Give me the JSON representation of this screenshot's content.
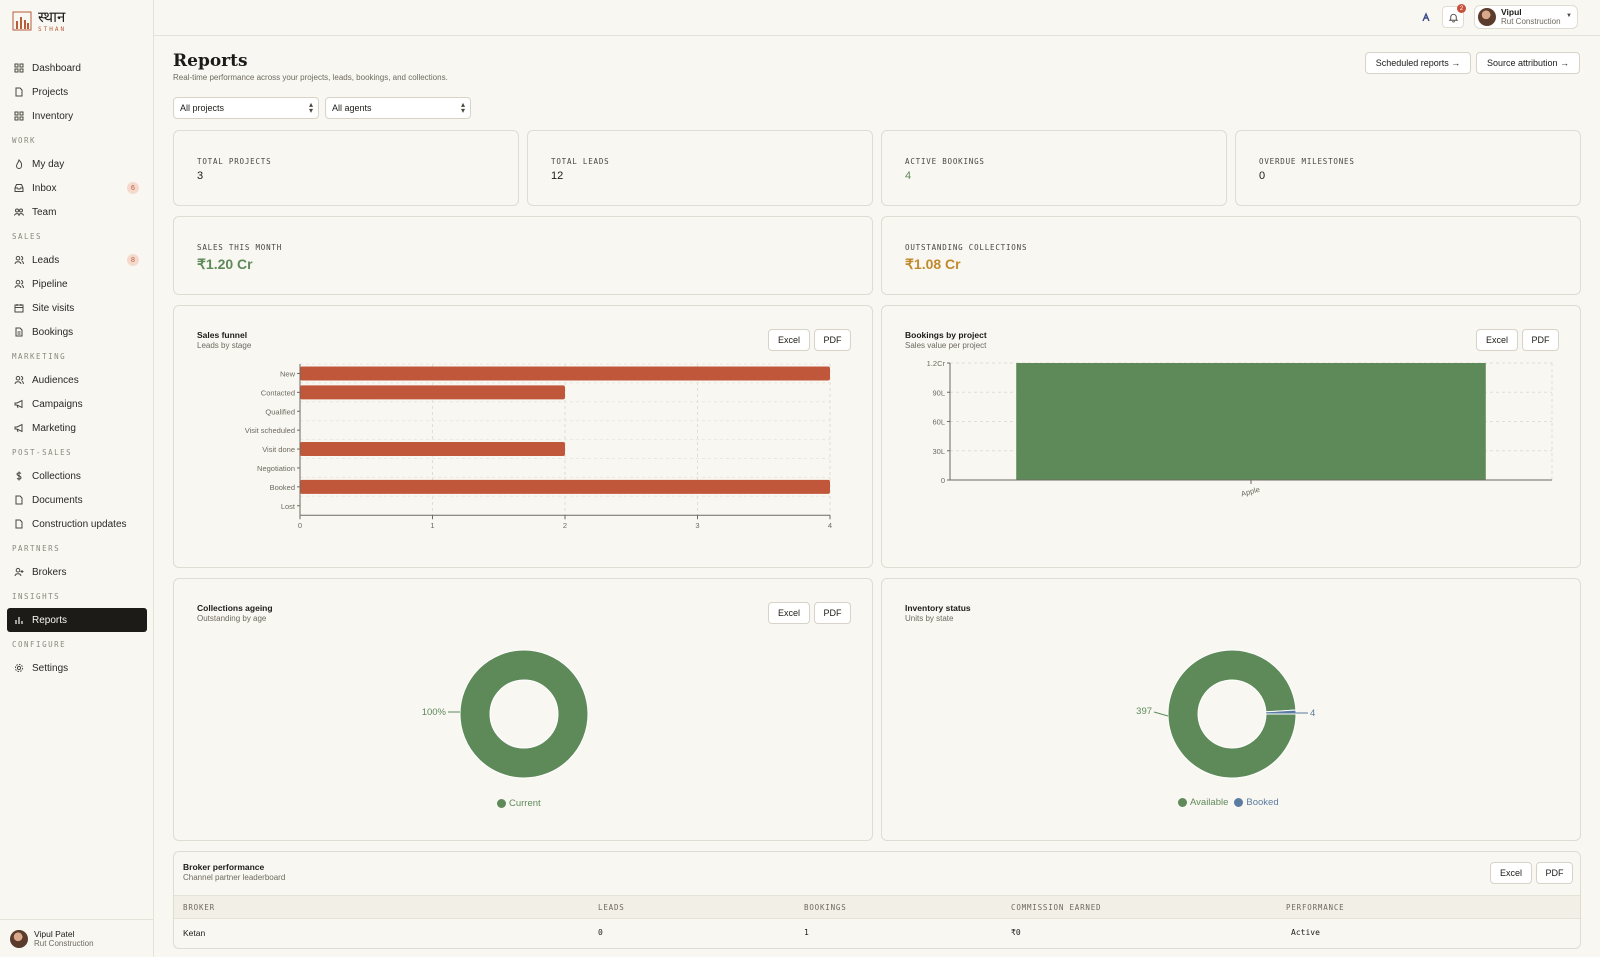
{
  "brand": {
    "name": "स्थान",
    "sub": "STHAN",
    "logo_icon": "bar-chart-logo-icon"
  },
  "sidebar": {
    "top": [
      {
        "label": "Dashboard",
        "icon": "grid-icon"
      },
      {
        "label": "Projects",
        "icon": "file-icon"
      },
      {
        "label": "Inventory",
        "icon": "grid-icon"
      }
    ],
    "sections": [
      {
        "title": "WORK",
        "items": [
          {
            "label": "My day",
            "icon": "flame-icon"
          },
          {
            "label": "Inbox",
            "icon": "inbox-icon",
            "badge": "6"
          },
          {
            "label": "Team",
            "icon": "team-icon"
          }
        ]
      },
      {
        "title": "SALES",
        "items": [
          {
            "label": "Leads",
            "icon": "users-icon",
            "badge": "8"
          },
          {
            "label": "Pipeline",
            "icon": "users-icon"
          },
          {
            "label": "Site visits",
            "icon": "calendar-icon"
          },
          {
            "label": "Bookings",
            "icon": "document-icon"
          }
        ]
      },
      {
        "title": "MARKETING",
        "items": [
          {
            "label": "Audiences",
            "icon": "users-icon"
          },
          {
            "label": "Campaigns",
            "icon": "megaphone-icon"
          },
          {
            "label": "Marketing",
            "icon": "megaphone-icon"
          }
        ]
      },
      {
        "title": "POST-SALES",
        "items": [
          {
            "label": "Collections",
            "icon": "dollar-icon"
          },
          {
            "label": "Documents",
            "icon": "file-icon"
          },
          {
            "label": "Construction updates",
            "icon": "file-icon"
          }
        ]
      },
      {
        "title": "PARTNERS",
        "items": [
          {
            "label": "Brokers",
            "icon": "user-plus-icon"
          }
        ]
      },
      {
        "title": "INSIGHTS",
        "items": [
          {
            "label": "Reports",
            "icon": "bar-chart-icon",
            "active": true
          }
        ]
      },
      {
        "title": "CONFIGURE",
        "items": [
          {
            "label": "Settings",
            "icon": "gear-icon"
          }
        ]
      }
    ],
    "user": {
      "name": "Vipul Patel",
      "org": "Rut Construction"
    }
  },
  "topbar": {
    "notification_count": "2",
    "user_name": "Vipul",
    "user_org": "Rut Construction"
  },
  "page": {
    "title": "Reports",
    "subtitle": "Real-time performance across your projects, leads, bookings, and collections.",
    "scheduled_reports": "Scheduled reports →",
    "source_attribution": "Source attribution →",
    "filter_projects": "All projects",
    "filter_agents": "All agents"
  },
  "kpis": {
    "total_projects": {
      "label": "TOTAL PROJECTS",
      "value": "3"
    },
    "total_leads": {
      "label": "TOTAL LEADS",
      "value": "12"
    },
    "active_bookings": {
      "label": "ACTIVE BOOKINGS",
      "value": "4"
    },
    "overdue_milestones": {
      "label": "OVERDUE MILESTONES",
      "value": "0"
    },
    "sales_this_month": {
      "label": "SALES THIS MONTH",
      "value": "₹1.20 Cr"
    },
    "outstanding_collections": {
      "label": "OUTSTANDING COLLECTIONS",
      "value": "₹1.08 Cr"
    }
  },
  "colors": {
    "terracotta": "#c0573a",
    "green": "#5e8a5a",
    "blue": "#5b7ba0",
    "gold": "#c08a2e"
  },
  "buttons": {
    "excel": "Excel",
    "pdf": "PDF"
  },
  "panels": {
    "funnel": {
      "title": "Sales funnel",
      "subtitle": "Leads by stage"
    },
    "bookings": {
      "title": "Bookings by project",
      "subtitle": "Sales value per project"
    },
    "ageing": {
      "title": "Collections ageing",
      "subtitle": "Outstanding by age"
    },
    "inventory": {
      "title": "Inventory status",
      "subtitle": "Units by state"
    },
    "broker": {
      "title": "Broker performance",
      "subtitle": "Channel partner leaderboard"
    }
  },
  "chart_data": [
    {
      "type": "bar",
      "orientation": "horizontal",
      "categories": [
        "New",
        "Contacted",
        "Qualified",
        "Visit scheduled",
        "Visit done",
        "Negotiation",
        "Booked",
        "Lost"
      ],
      "values": [
        4,
        2,
        0,
        0,
        2,
        0,
        4,
        0
      ],
      "xlim": [
        0,
        4
      ],
      "xticks": [
        "0",
        "1",
        "2",
        "3",
        "4"
      ],
      "grid": true
    },
    {
      "type": "bar",
      "categories": [
        "Apple"
      ],
      "values": [
        12000000
      ],
      "ylim": [
        0,
        12000000
      ],
      "yticks": [
        {
          "value": 0,
          "label": "0"
        },
        {
          "value": 3000000,
          "label": "30L"
        },
        {
          "value": 6000000,
          "label": "60L"
        },
        {
          "value": 9000000,
          "label": "90L"
        },
        {
          "value": 12000000,
          "label": "1.2Cr"
        }
      ],
      "grid": true
    },
    {
      "type": "pie",
      "donut": true,
      "labels": [
        "Current"
      ],
      "values": [
        100
      ],
      "data_labels": [
        "100%"
      ],
      "legend": "bottom"
    },
    {
      "type": "pie",
      "donut": true,
      "labels": [
        "Available",
        "Booked"
      ],
      "values": [
        397,
        4
      ],
      "data_labels": [
        "397",
        "4"
      ],
      "legend": "bottom"
    }
  ],
  "broker_table": {
    "columns": [
      "BROKER",
      "LEADS",
      "BOOKINGS",
      "COMMISSION EARNED",
      "PERFORMANCE"
    ],
    "rows": [
      {
        "broker": "Ketan",
        "leads": "0",
        "bookings": "1",
        "commission": "₹0",
        "performance": "Active"
      }
    ]
  }
}
